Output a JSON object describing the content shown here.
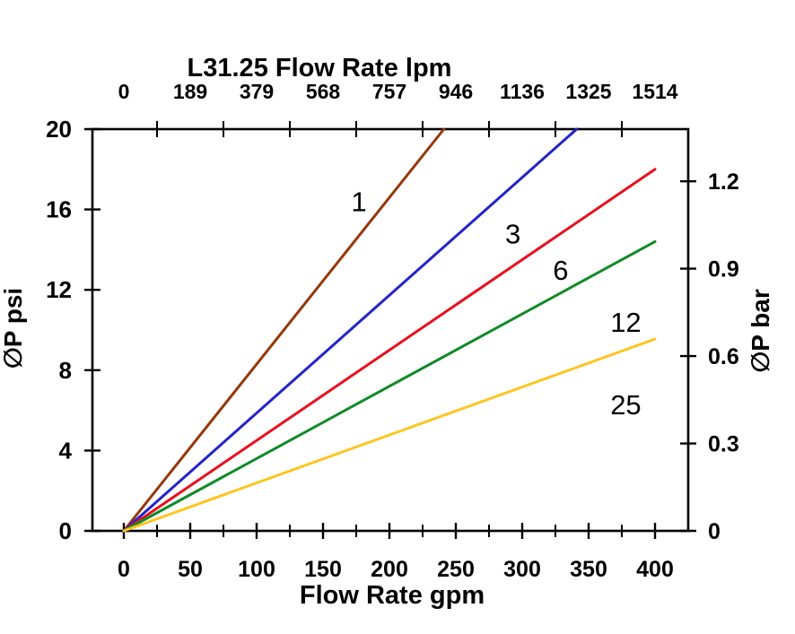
{
  "chart_data": {
    "type": "line",
    "title": "L31.25 Flow Rate lpm",
    "background_color": "#ffffff",
    "axis_color": "#000000",
    "top_axis": {
      "title": "L31.25 Flow Rate lpm",
      "unit": "lpm",
      "tick_labels": [
        "0",
        "189",
        "379",
        "568",
        "757",
        "946",
        "1136",
        "1325",
        "1514"
      ],
      "tick_positions_gpm": [
        0,
        50,
        100,
        150,
        200,
        250,
        300,
        350,
        400
      ],
      "minor_ticks_gpm": [
        25,
        75,
        125,
        175,
        225,
        275,
        325,
        375
      ]
    },
    "bottom_axis": {
      "title": "Flow Rate gpm",
      "unit": "gpm",
      "tick_labels": [
        "0",
        "50",
        "100",
        "150",
        "200",
        "250",
        "300",
        "350",
        "400"
      ],
      "tick_positions_gpm": [
        0,
        50,
        100,
        150,
        200,
        250,
        300,
        350,
        400
      ],
      "minor_ticks_gpm": [
        25,
        75,
        125,
        175,
        225,
        275,
        325,
        375
      ],
      "range_gpm": [
        0,
        400
      ]
    },
    "left_axis": {
      "title": "∅P psi",
      "unit": "psi",
      "tick_labels": [
        "0",
        "4",
        "8",
        "12",
        "16",
        "20"
      ],
      "tick_values_psi": [
        0,
        4,
        8,
        12,
        16,
        20
      ],
      "range_psi": [
        0,
        20
      ]
    },
    "right_axis": {
      "title": "∅P bar",
      "unit": "bar",
      "tick_labels": [
        "0",
        "0.3",
        "0.6",
        "0.9",
        "1.2"
      ],
      "tick_values_bar": [
        0,
        0.3,
        0.6,
        0.9,
        1.2
      ],
      "psi_per_bar": 14.5038
    },
    "series": [
      {
        "label": "1",
        "color": "#953709",
        "points_gpm_psi": [
          [
            0,
            0
          ],
          [
            241,
            20
          ]
        ],
        "label_pos_gpm_psi": [
          177,
          16.4
        ]
      },
      {
        "label": "3",
        "color": "#2323CB",
        "points_gpm_psi": [
          [
            0,
            0
          ],
          [
            341,
            20
          ]
        ],
        "label_pos_gpm_psi": [
          293,
          14.8
        ]
      },
      {
        "label": "6",
        "color": "#E8101E",
        "points_gpm_psi": [
          [
            0,
            0
          ],
          [
            400,
            18.0
          ]
        ],
        "label_pos_gpm_psi": [
          329,
          13.0
        ]
      },
      {
        "label": "12",
        "color": "#108A28",
        "points_gpm_psi": [
          [
            0,
            0
          ],
          [
            400,
            14.4
          ]
        ],
        "label_pos_gpm_psi": [
          378,
          10.4
        ]
      },
      {
        "label": "25",
        "color": "#FDC51F",
        "points_gpm_psi": [
          [
            0,
            0
          ],
          [
            400,
            9.55
          ]
        ],
        "label_pos_gpm_psi": [
          378,
          6.3
        ]
      }
    ]
  }
}
